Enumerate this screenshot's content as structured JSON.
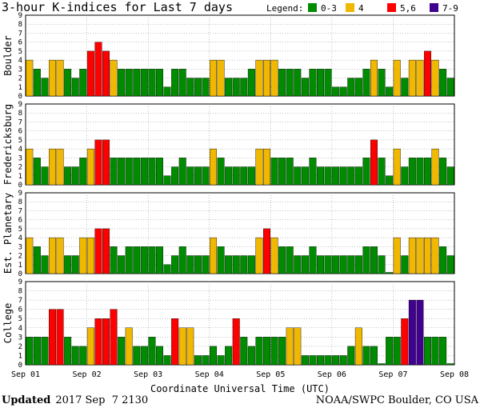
{
  "chart_data": {
    "type": "bar",
    "title": "3-hour K-indices for Last 7 days",
    "legend": {
      "label": "Legend:",
      "entries": [
        {
          "label": "0-3",
          "color": "#008c00"
        },
        {
          "label": "4",
          "color": "#f0b800"
        },
        {
          "label": "5,6",
          "color": "#ff0000"
        },
        {
          "label": "7-9",
          "color": "#400090"
        }
      ]
    },
    "ylim": [
      0,
      9
    ],
    "yticks": [
      "0",
      "1",
      "2",
      "3",
      "4",
      "5",
      "6",
      "7",
      "8",
      "9"
    ],
    "x_tick_labels": [
      "Sep 01",
      "Sep 02",
      "Sep 03",
      "Sep 04",
      "Sep 05",
      "Sep 06",
      "Sep 07",
      "Sep 08"
    ],
    "xlabel": "Coordinate Universal Time (UTC)",
    "panels": [
      {
        "name": "Boulder",
        "values": [
          4,
          3,
          2,
          4,
          4,
          3,
          2,
          3,
          5,
          6,
          5,
          4,
          3,
          3,
          3,
          3,
          3,
          3,
          1,
          3,
          3,
          2,
          2,
          2,
          4,
          4,
          2,
          2,
          2,
          3,
          4,
          4,
          4,
          3,
          3,
          3,
          2,
          3,
          3,
          3,
          1,
          1,
          2,
          2,
          3,
          4,
          3,
          1,
          4,
          2,
          4,
          4,
          5,
          4,
          3,
          2,
          0
        ]
      },
      {
        "name": "Fredericksburg",
        "values": [
          4,
          3,
          2,
          4,
          4,
          2,
          2,
          3,
          4,
          5,
          5,
          3,
          3,
          3,
          3,
          3,
          3,
          3,
          1,
          2,
          3,
          2,
          2,
          2,
          4,
          3,
          2,
          2,
          2,
          2,
          4,
          4,
          3,
          3,
          3,
          2,
          2,
          3,
          2,
          2,
          2,
          2,
          2,
          2,
          3,
          5,
          3,
          1,
          4,
          2,
          3,
          3,
          3,
          4,
          3,
          2,
          0
        ]
      },
      {
        "name": "Est. Planetary",
        "values": [
          4,
          3,
          2,
          4,
          4,
          2,
          2,
          4,
          4,
          5,
          5,
          3,
          2,
          3,
          3,
          3,
          3,
          3,
          1,
          2,
          3,
          2,
          2,
          2,
          4,
          3,
          2,
          2,
          2,
          2,
          4,
          5,
          4,
          3,
          3,
          2,
          2,
          3,
          2,
          2,
          2,
          2,
          2,
          2,
          3,
          3,
          2,
          0,
          4,
          2,
          4,
          4,
          4,
          4,
          3,
          2,
          2
        ]
      },
      {
        "name": "College",
        "values": [
          3,
          3,
          3,
          6,
          6,
          3,
          2,
          2,
          4,
          5,
          5,
          6,
          3,
          4,
          2,
          2,
          3,
          2,
          1,
          5,
          4,
          4,
          1,
          1,
          2,
          1,
          2,
          5,
          3,
          2,
          3,
          3,
          3,
          3,
          4,
          4,
          1,
          1,
          1,
          1,
          1,
          1,
          2,
          4,
          2,
          2,
          0,
          3,
          3,
          5,
          7,
          7,
          3,
          3,
          3,
          0,
          0
        ]
      }
    ]
  },
  "footer": {
    "updated_label": "Updated",
    "updated_value": "2017 Sep  7 2130",
    "source": "NOAA/SWPC Boulder, CO USA"
  }
}
